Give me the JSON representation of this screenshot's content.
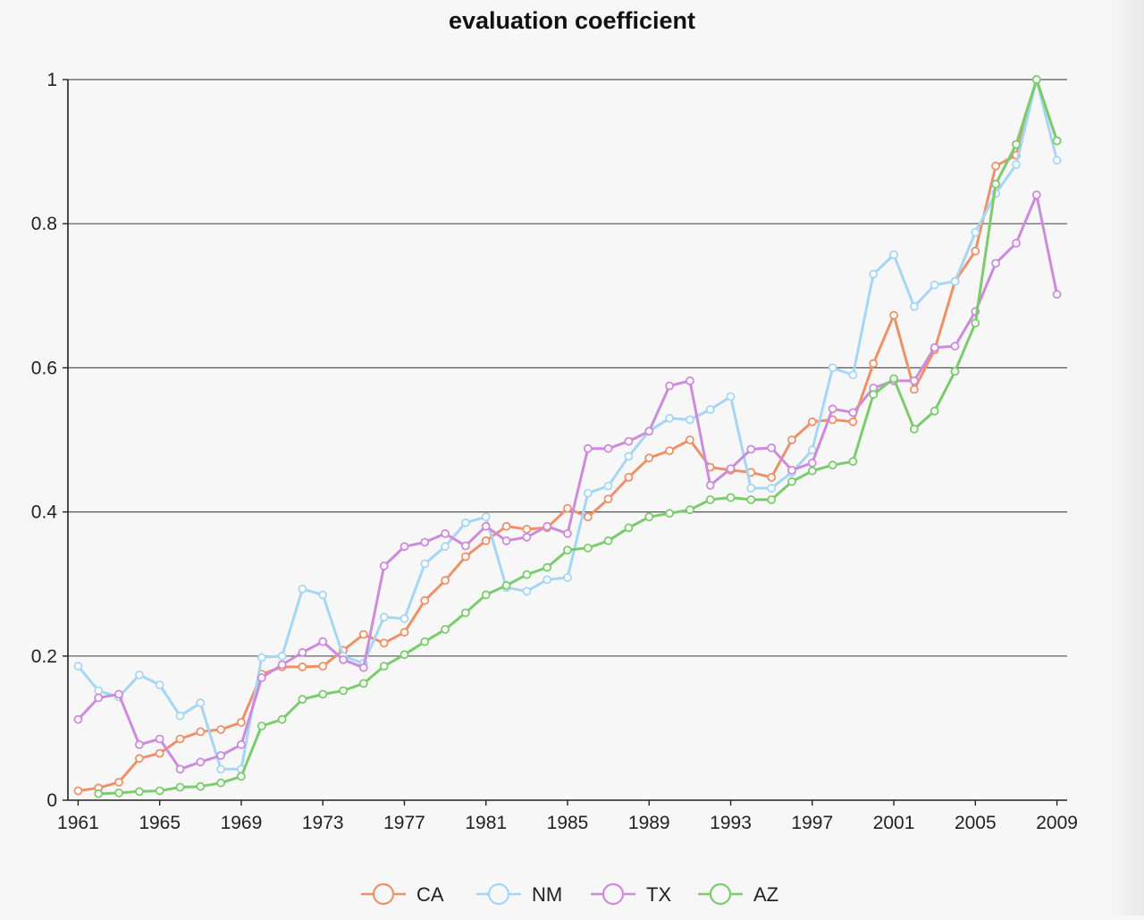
{
  "chart_data": {
    "type": "line",
    "title": "evaluation coefficient",
    "xlabel": "",
    "ylabel": "",
    "x": [
      1961,
      1962,
      1963,
      1964,
      1965,
      1966,
      1967,
      1968,
      1969,
      1970,
      1971,
      1972,
      1973,
      1974,
      1975,
      1976,
      1977,
      1978,
      1979,
      1980,
      1981,
      1982,
      1983,
      1984,
      1985,
      1986,
      1987,
      1988,
      1989,
      1990,
      1991,
      1992,
      1993,
      1994,
      1995,
      1996,
      1997,
      1998,
      1999,
      2000,
      2001,
      2002,
      2003,
      2004,
      2005,
      2006,
      2007,
      2008,
      2009
    ],
    "xticks": [
      1961,
      1965,
      1969,
      1973,
      1977,
      1981,
      1985,
      1989,
      1993,
      1997,
      2001,
      2005,
      2009
    ],
    "xlim": [
      1960.5,
      2009.5
    ],
    "ylim": [
      0,
      1
    ],
    "yticks": [
      0,
      0.2,
      0.4,
      0.6,
      0.8,
      1
    ],
    "ytick_labels": [
      "0",
      "0.2",
      "0.4",
      "0.6",
      "0.8",
      "1"
    ],
    "grid": true,
    "legend_position": "bottom-center",
    "series": [
      {
        "name": "CA",
        "color": "#ee9169",
        "values": [
          0.013,
          0.017,
          0.025,
          0.058,
          0.065,
          0.085,
          0.095,
          0.098,
          0.108,
          0.175,
          0.185,
          0.185,
          0.186,
          0.208,
          0.23,
          0.218,
          0.233,
          0.277,
          0.305,
          0.338,
          0.36,
          0.38,
          0.376,
          0.378,
          0.405,
          0.393,
          0.418,
          0.448,
          0.475,
          0.485,
          0.5,
          0.462,
          0.458,
          0.455,
          0.448,
          0.5,
          0.525,
          0.528,
          0.525,
          0.606,
          0.673,
          0.57,
          0.625,
          0.72,
          0.762,
          0.88,
          0.895,
          1.0,
          0.915
        ]
      },
      {
        "name": "NM",
        "color": "#a6d6f5",
        "values": [
          0.186,
          0.152,
          0.143,
          0.174,
          0.16,
          0.117,
          0.135,
          0.043,
          0.043,
          0.198,
          0.2,
          0.293,
          0.285,
          0.2,
          0.19,
          0.254,
          0.252,
          0.328,
          0.352,
          0.385,
          0.393,
          0.295,
          0.29,
          0.306,
          0.309,
          0.426,
          0.436,
          0.477,
          0.512,
          0.53,
          0.528,
          0.542,
          0.56,
          0.433,
          0.433,
          0.455,
          0.486,
          0.6,
          0.59,
          0.73,
          0.757,
          0.685,
          0.715,
          0.72,
          0.788,
          0.842,
          0.882,
          1.0,
          0.888
        ]
      },
      {
        "name": "TX",
        "color": "#cd8bdb",
        "values": [
          0.112,
          0.142,
          0.147,
          0.077,
          0.085,
          0.043,
          0.053,
          0.062,
          0.077,
          0.17,
          0.188,
          0.205,
          0.22,
          0.195,
          0.184,
          0.325,
          0.352,
          0.358,
          0.37,
          0.353,
          0.38,
          0.36,
          0.365,
          0.38,
          0.37,
          0.488,
          0.488,
          0.498,
          0.512,
          0.575,
          0.582,
          0.437,
          0.46,
          0.487,
          0.489,
          0.458,
          0.468,
          0.543,
          0.538,
          0.572,
          0.582,
          0.582,
          0.628,
          0.63,
          0.678,
          0.745,
          0.773,
          0.84,
          0.702
        ]
      },
      {
        "name": "AZ",
        "color": "#7acc6c",
        "values": [
          null,
          0.009,
          0.01,
          0.012,
          0.013,
          0.018,
          0.019,
          0.024,
          0.033,
          0.103,
          0.112,
          0.14,
          0.147,
          0.152,
          0.162,
          0.186,
          0.202,
          0.22,
          0.237,
          0.26,
          0.285,
          0.298,
          0.313,
          0.323,
          0.347,
          0.35,
          0.36,
          0.378,
          0.393,
          0.398,
          0.403,
          0.417,
          0.42,
          0.417,
          0.417,
          0.442,
          0.457,
          0.465,
          0.47,
          0.563,
          0.585,
          0.515,
          0.54,
          0.595,
          0.662,
          0.855,
          0.91,
          1.0,
          0.915
        ]
      }
    ]
  }
}
